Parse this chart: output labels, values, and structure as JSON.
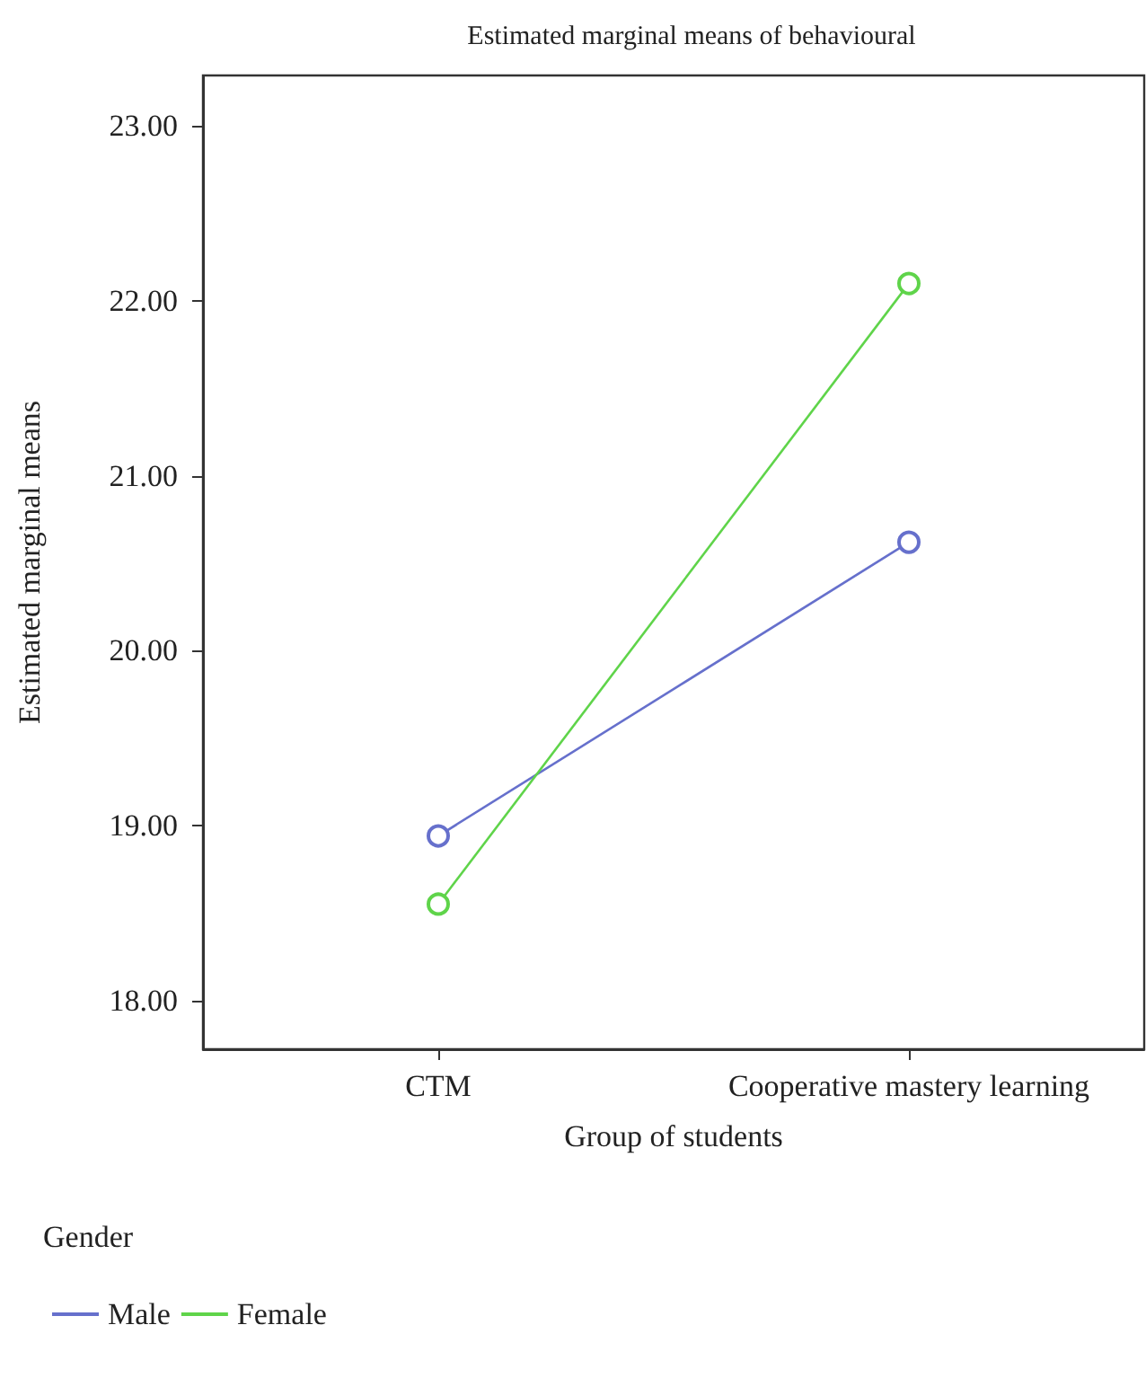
{
  "chart_data": {
    "type": "line",
    "title": "Estimated marginal means of behavioural",
    "xlabel": "Group of students",
    "ylabel": "Estimated marginal means",
    "legend_title": "Gender",
    "categories": [
      "CTM",
      "Cooperative mastery learning"
    ],
    "series": [
      {
        "name": "Male",
        "color": "#6670cc",
        "values": [
          18.94,
          20.62
        ]
      },
      {
        "name": "Female",
        "color": "#5fd44a",
        "values": [
          18.55,
          22.1
        ]
      }
    ],
    "ylim": [
      17.72,
      23.29
    ],
    "yticks": [
      {
        "value": 18,
        "label": "18.00"
      },
      {
        "value": 19,
        "label": "19.00"
      },
      {
        "value": 20,
        "label": "20.00"
      },
      {
        "value": 21,
        "label": "21.00"
      },
      {
        "value": 22,
        "label": "22.00"
      },
      {
        "value": 23,
        "label": "23.00"
      }
    ],
    "grid": false,
    "legend": "bottom left",
    "marker": "circle",
    "line_style": "solid"
  }
}
